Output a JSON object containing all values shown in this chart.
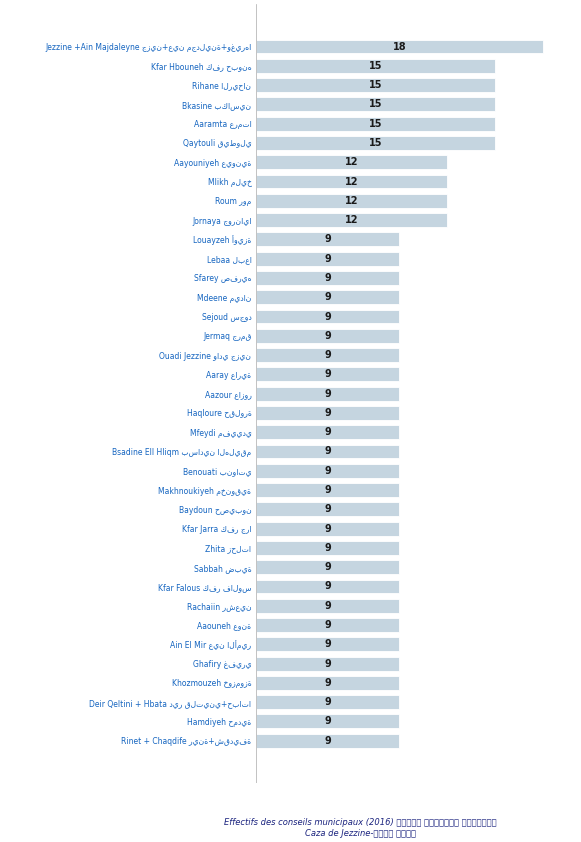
{
  "categories": [
    "Jezzine +Ain Majdaleyne جزين+عين مجدلينة+وغيرها",
    "Kfar Hbouneh كفر حبونه",
    "Rihane الريحان",
    "Bkasine بكاسين",
    "Aaramta عرمتا",
    "Qaytouli قيطولي",
    "Aayouniyeh عيونية",
    "Mlikh مليخ",
    "Roum روم",
    "Jornaya جورنايا",
    "Louayzeh أويزة",
    "Lebaa لبعا",
    "Sfarey صفريه",
    "Mdeene ميدان",
    "Sejoud سجود",
    "Jermaq جرمق",
    "Ouadi Jezzine وادي جزين",
    "Aaray عارية",
    "Aazour عازور",
    "Haqloure حقلورة",
    "Mfeydi مفييدي",
    "Bsadine Ell Hliqm بسادين الهليقم",
    "Benouati بنواتي",
    "Makhnoukiyeh مخنوقية",
    "Baydoun حصيبون",
    "Kfar Jarra كفر جرا",
    "Zhita زحلتا",
    "Sabbah ضبية",
    "Kfar Falous كفر فالوس",
    "Rachaiin رشعين",
    "Aaouneh عونة",
    "Ain El Mir عين الأمير",
    "Ghafiry غفيري",
    "Khozmouzeh خوزموزة",
    "Deir Qeltini + Hbata دير قلتيني+حباتا",
    "Hamdiyeh حمدية",
    "Rinet + Chaqdife رينة+شقديفة"
  ],
  "values": [
    18,
    15,
    15,
    15,
    15,
    15,
    12,
    12,
    12,
    12,
    9,
    9,
    9,
    9,
    9,
    9,
    9,
    9,
    9,
    9,
    9,
    9,
    9,
    9,
    9,
    9,
    9,
    9,
    9,
    9,
    9,
    9,
    9,
    9,
    9,
    9,
    9
  ],
  "bar_color": "#c5d5e0",
  "text_color_value": "#1a1a1a",
  "label_color_fr": "#1565c0",
  "label_color_ar": "#007b6e",
  "xlabel_line1": "Effectifs des conseils municipaux (2016) مقاعد المجالس البلدية",
  "xlabel_line2": "Caza de Jezzine-قضاء جزين",
  "figsize": [
    5.81,
    8.42
  ],
  "dpi": 100,
  "bg_color": "#ffffff",
  "plot_bg_color": "#f0f5f8"
}
